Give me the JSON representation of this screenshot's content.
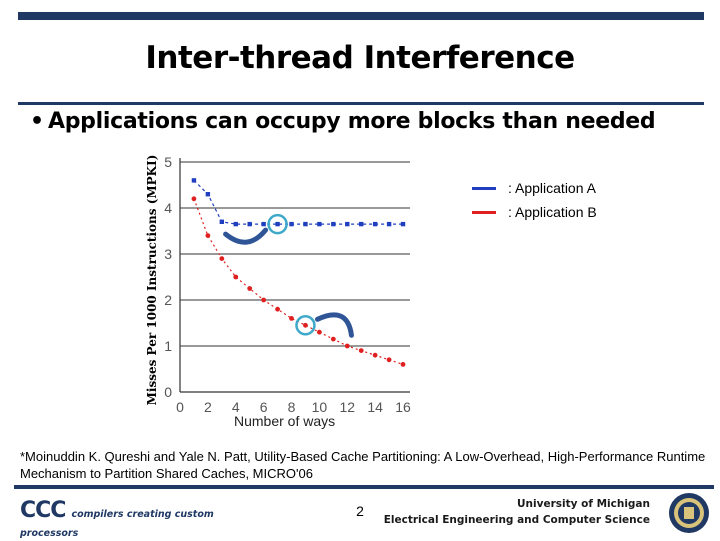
{
  "slide": {
    "title": "Inter-thread Interference",
    "bullet": "Applications can occupy more blocks than needed",
    "xlabel_overlay": "Number of ways",
    "footnote": "*Moinuddin K. Qureshi and Yale N. Patt, Utility-Based Cache Partitioning: A Low-Overhead, High-Performance Runtime Mechanism to Partition Shared Caches, MICRO'06",
    "page_number": "2",
    "logo_text": "CCC",
    "logo_tagline": "compilers creating custom processors",
    "affiliation_line1": "University of Michigan",
    "affiliation_line2": "Electrical Engineering and Computer Science",
    "colors": {
      "bar": "#1f3864",
      "series_a": "#1f3fbf",
      "series_b": "#e02020",
      "highlight": "#3fa9c9"
    }
  },
  "chart_data": {
    "type": "line",
    "ylabel": "Misses Per 1000 Instructions (MPKI)",
    "xlabel": "",
    "x_ticks": [
      "0",
      "2",
      "4",
      "6",
      "8",
      "10",
      "12",
      "14",
      "16"
    ],
    "y_ticks": [
      "0",
      "1",
      "2",
      "3",
      "4",
      "5"
    ],
    "xlim": [
      0,
      16.5
    ],
    "ylim": [
      0,
      5
    ],
    "legend_position": "top-right",
    "x": [
      1,
      2,
      3,
      4,
      5,
      6,
      7,
      8,
      9,
      10,
      11,
      12,
      13,
      14,
      15,
      16
    ],
    "series": [
      {
        "name": ": Application A",
        "values": [
          4.6,
          4.3,
          3.7,
          3.65,
          3.65,
          3.65,
          3.65,
          3.65,
          3.65,
          3.65,
          3.65,
          3.65,
          3.65,
          3.65,
          3.65,
          3.65
        ]
      },
      {
        "name": ": Application B",
        "values": [
          4.2,
          3.4,
          2.9,
          2.5,
          2.25,
          2.0,
          1.8,
          1.6,
          1.45,
          1.3,
          1.15,
          1.0,
          0.9,
          0.8,
          0.7,
          0.6
        ]
      }
    ]
  }
}
